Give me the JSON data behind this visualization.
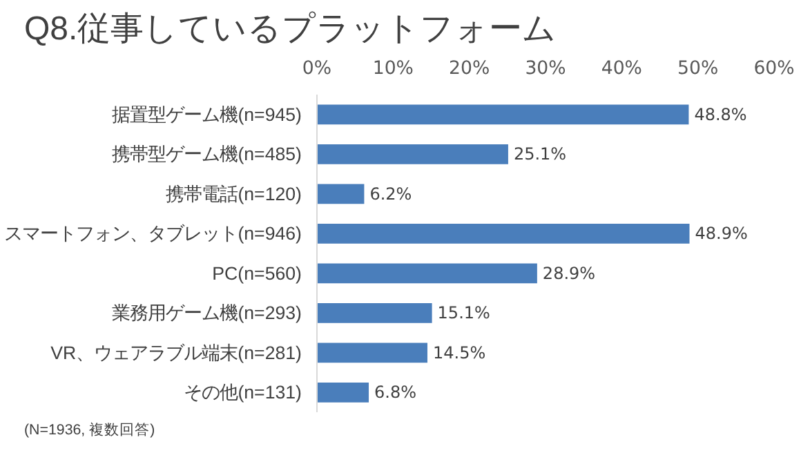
{
  "chart_data": {
    "type": "bar",
    "orientation": "horizontal",
    "title": "Q8.従事しているプラットフォーム",
    "categories": [
      "据置型ゲーム機(n=945)",
      "携帯型ゲーム機(n=485)",
      "携帯電話(n=120)",
      "スマートフォン、タブレット(n=946)",
      "PC(n=560)",
      "業務用ゲーム機(n=293)",
      "VR、ウェアラブル端末(n=281)",
      "その他(n=131)"
    ],
    "values": [
      48.8,
      25.1,
      6.2,
      48.9,
      28.9,
      15.1,
      14.5,
      6.8
    ],
    "value_labels": [
      "48.8%",
      "25.1%",
      "6.2%",
      "48.9%",
      "28.9%",
      "15.1%",
      "14.5%",
      "6.8%"
    ],
    "color": "#4a7ebb",
    "xlim": [
      0,
      60
    ],
    "xticks": [
      {
        "value": 0,
        "label": "0%"
      },
      {
        "value": 10,
        "label": "10%"
      },
      {
        "value": 20,
        "label": "20%"
      },
      {
        "value": 30,
        "label": "30%"
      },
      {
        "value": 40,
        "label": "40%"
      },
      {
        "value": 50,
        "label": "50%"
      },
      {
        "value": 60,
        "label": "60%"
      }
    ],
    "grid": false,
    "annotations": [
      "(N=1936, 複数回答)"
    ]
  }
}
